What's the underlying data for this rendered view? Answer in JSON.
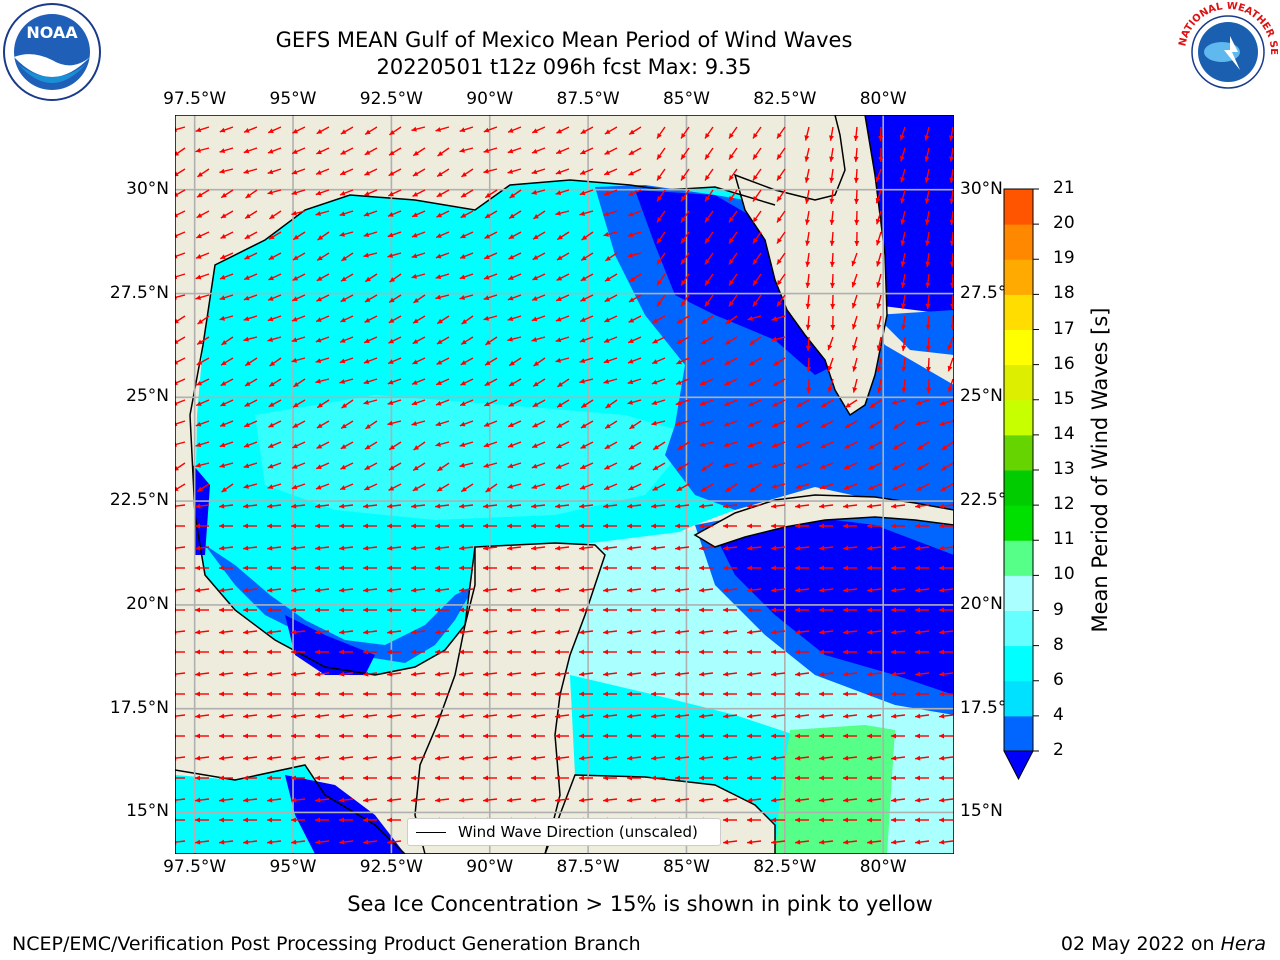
{
  "header": {
    "title_line1": "GEFS MEAN Gulf of Mexico Mean Period of Wind Waves",
    "title_line2": "20220501 t12z 096h fcst   Max: 9.35"
  },
  "logos": {
    "left": {
      "icon": "noaa-logo-icon",
      "text": "NOAA",
      "ring_text": "NATIONAL OCEANIC AND ATMOSPHERIC ADMINISTRATION · U.S. DEPARTMENT OF COMMERCE"
    },
    "right": {
      "icon": "nws-logo-icon",
      "ring_text": "NATIONAL WEATHER SERVICE"
    }
  },
  "chart_data": {
    "type": "heatmap",
    "x_ticks": [
      "97.5°W",
      "95°W",
      "92.5°W",
      "90°W",
      "87.5°W",
      "85°W",
      "82.5°W",
      "80°W"
    ],
    "y_ticks_left": [
      "30°N",
      "27.5°N",
      "25°N",
      "22.5°N",
      "20°N",
      "17.5°N",
      "15°N"
    ],
    "y_ticks_right": [
      "30°N",
      "27.5°N",
      "25°N",
      "22.5°N",
      "20°N",
      "17.5°N",
      "15°N"
    ],
    "xlim": [
      -98,
      -78.2
    ],
    "ylim": [
      14.0,
      31.8
    ],
    "grid": true,
    "colorbar": {
      "label": "Mean Period of Wind Waves [s]",
      "ticks": [
        "2",
        "4",
        "6",
        "8",
        "9",
        "10",
        "11",
        "12",
        "13",
        "14",
        "15",
        "16",
        "17",
        "18",
        "19",
        "20",
        "21"
      ],
      "colors": [
        "#0066ff",
        "#00e0ff",
        "#00ffff",
        "#66ffff",
        "#aaffff",
        "#55ff88",
        "#00e000",
        "#00cc00",
        "#66d400",
        "#c8ff00",
        "#ddee00",
        "#ffff00",
        "#ffdd00",
        "#ffaa00",
        "#ff8800",
        "#ff5500",
        "#ff2200",
        "#ff0000"
      ],
      "extend_low_color": "#0000ff"
    },
    "legend": {
      "entry": "Wind Wave Direction (unscaled)",
      "placement": "bottom-center"
    },
    "max_value": 9.35,
    "colors": {
      "land": "#eeecdc",
      "arrows": "#ff0000",
      "low": "#0000ff",
      "mid": "#0066ff",
      "high": "#00ffff",
      "light": "#aaffff",
      "green": "#55ff88"
    }
  },
  "footer": {
    "sea_ice_note": "Sea Ice Concentration > 15% is shown in pink to yellow",
    "credit": "NCEP/EMC/Verification Post Processing Product Generation Branch",
    "date": "02 May 2022 on ",
    "machine": "Hera"
  }
}
